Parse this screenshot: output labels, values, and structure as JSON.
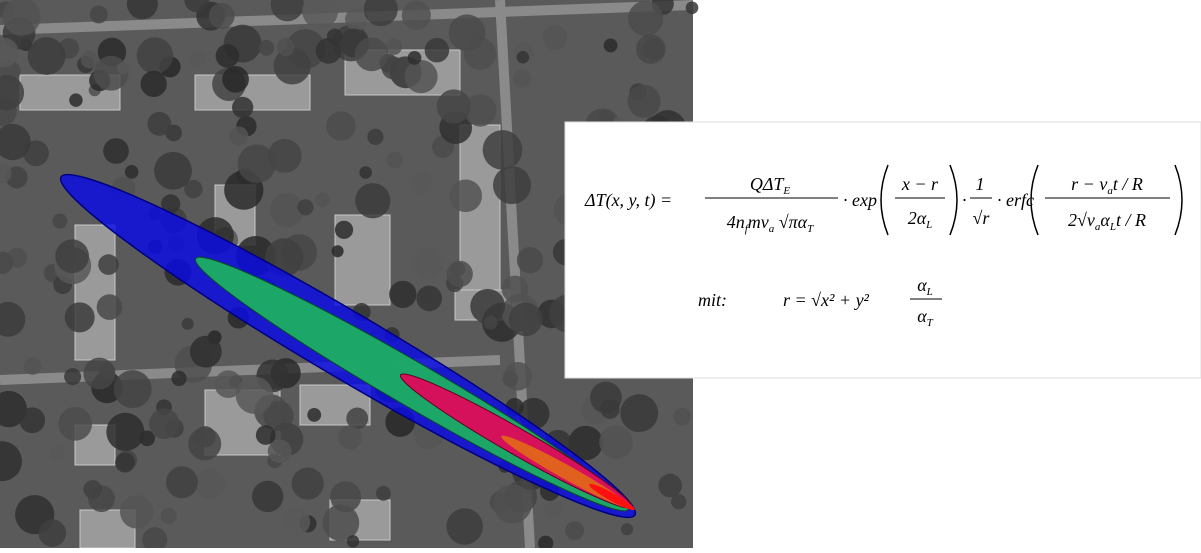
{
  "formula": {
    "lhs": [
      "ΔT(x, y, t) ="
    ],
    "f1_num": [
      "QΔT",
      "E"
    ],
    "f1_den": [
      "4n",
      "f",
      "mv",
      "a",
      " √πα",
      "T"
    ],
    "exp": [
      "· exp"
    ],
    "f2_num": [
      "x − r"
    ],
    "f2_den": [
      "2α",
      "L"
    ],
    "dot": [
      "·"
    ],
    "f3_num": [
      "1"
    ],
    "f3_den": [
      "√r"
    ],
    "erfc": [
      "· erfc"
    ],
    "f4_num": [
      "r − v",
      "a",
      "t / R"
    ],
    "f4_den": [
      "2√v",
      "a",
      "α",
      "L",
      "t / R"
    ],
    "mit": [
      "mit:"
    ],
    "r_def": [
      "r = √x² + y²"
    ],
    "r_num": [
      "α",
      "L"
    ],
    "r_den": [
      "α",
      "T"
    ]
  }
}
